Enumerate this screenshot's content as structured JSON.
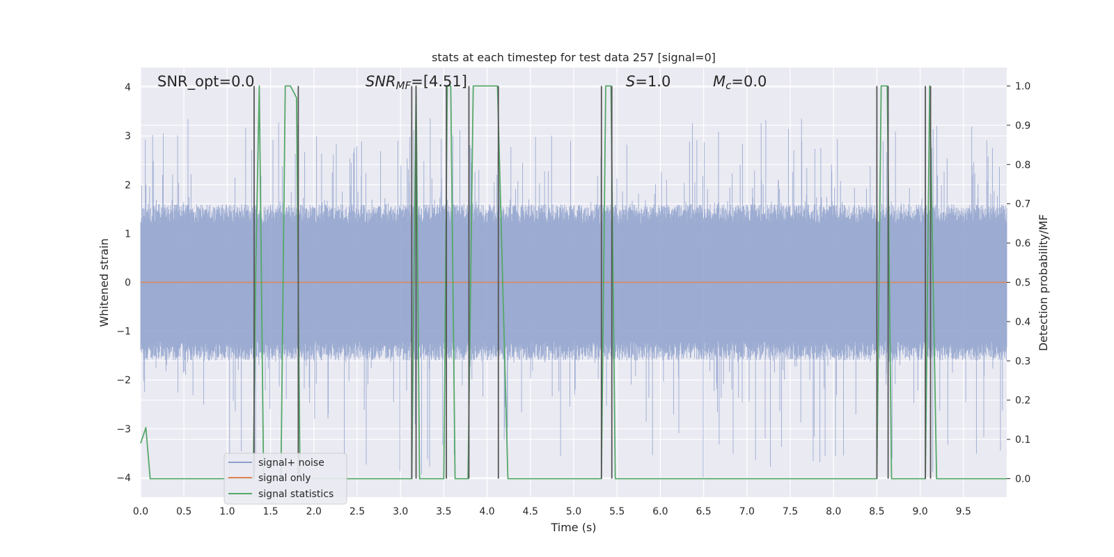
{
  "chart_data": {
    "type": "line",
    "title": "stats at each timestep for test data 257 [signal=0]",
    "xlabel": "Time (s)",
    "ylabel": "Whitened strain",
    "y2label": "Detection probability/MF",
    "xlim": [
      0.0,
      10.0
    ],
    "ylim": [
      -4.4,
      4.4
    ],
    "y2lim": [
      -0.047,
      1.047
    ],
    "x_ticks": [
      "0.0",
      "0.5",
      "1.0",
      "1.5",
      "2.0",
      "2.5",
      "3.0",
      "3.5",
      "4.0",
      "4.5",
      "5.0",
      "5.5",
      "6.0",
      "6.5",
      "7.0",
      "7.5",
      "8.0",
      "8.5",
      "9.0",
      "9.5"
    ],
    "y_ticks": [
      "−4",
      "−3",
      "−2",
      "−1",
      "0",
      "1",
      "2",
      "3",
      "4"
    ],
    "y2_ticks": [
      "0.0",
      "0.1",
      "0.2",
      "0.3",
      "0.4",
      "0.5",
      "0.6",
      "0.7",
      "0.8",
      "0.9",
      "1.0"
    ],
    "grid": true,
    "legend_placement": "lower-left",
    "annotations": {
      "snr_opt": "SNR_opt=0.0",
      "snr_mf": "SNRMF=[4.51]",
      "snr_mf_prefix": "SNR",
      "snr_mf_sub": "MF",
      "snr_mf_suffix": "=[4.51]",
      "s_value": "S=1.0",
      "s_prefix": "S",
      "s_suffix": "=1.0",
      "mc_value": "Mc=0.0",
      "mc_prefix": "M",
      "mc_sub": "c",
      "mc_suffix": "=0.0"
    },
    "series": [
      {
        "name": "signal+ noise",
        "color": "#8da0cb",
        "axis": "left",
        "style": "noise",
        "noise_band": [
          -1.6,
          1.6
        ],
        "peak_range": [
          -4.0,
          3.4
        ]
      },
      {
        "name": "signal only",
        "color": "#dd8452",
        "axis": "left",
        "x": [
          0.0,
          10.0
        ],
        "y": [
          0.0,
          0.0
        ]
      },
      {
        "name": "signal statistics",
        "color": "#55a868",
        "axis": "right",
        "x": [
          0.0,
          0.06,
          0.11,
          0.2,
          1.3,
          1.33,
          1.37,
          1.42,
          1.62,
          1.67,
          1.73,
          1.8,
          1.84,
          1.86,
          3.13,
          3.18,
          3.22,
          3.27,
          3.5,
          3.54,
          3.58,
          3.63,
          3.78,
          3.84,
          3.88,
          4.12,
          4.24,
          5.32,
          5.37,
          5.43,
          5.48,
          5.57,
          8.5,
          8.55,
          8.62,
          8.67,
          9.06,
          9.11,
          9.19,
          9.27,
          9.34,
          9.4,
          10.0
        ],
        "y": [
          0.09,
          0.13,
          0.0,
          0.0,
          0.0,
          0.55,
          1.0,
          0.0,
          0.0,
          1.0,
          1.0,
          0.97,
          0.0,
          0.0,
          0.0,
          1.0,
          0.0,
          0.0,
          0.0,
          1.0,
          1.0,
          0.0,
          0.0,
          1.0,
          1.0,
          1.0,
          0.0,
          0.0,
          1.0,
          1.0,
          0.0,
          0.0,
          0.0,
          1.0,
          1.0,
          0.0,
          0.0,
          1.0,
          0.0,
          0.0,
          0.0,
          0.0,
          0.0
        ]
      },
      {
        "name": "detection markers",
        "color": "#555555",
        "axis": "right",
        "style": "vlines",
        "x": [
          1.31,
          1.82,
          3.13,
          3.18,
          3.53,
          3.79,
          4.13,
          5.32,
          5.44,
          8.5,
          8.63,
          9.06,
          9.12
        ]
      }
    ]
  },
  "legend": {
    "items": [
      {
        "label": "signal+ noise",
        "color": "#8da0cb"
      },
      {
        "label": "signal only",
        "color": "#dd8452"
      },
      {
        "label": "signal statistics",
        "color": "#55a868"
      }
    ]
  }
}
